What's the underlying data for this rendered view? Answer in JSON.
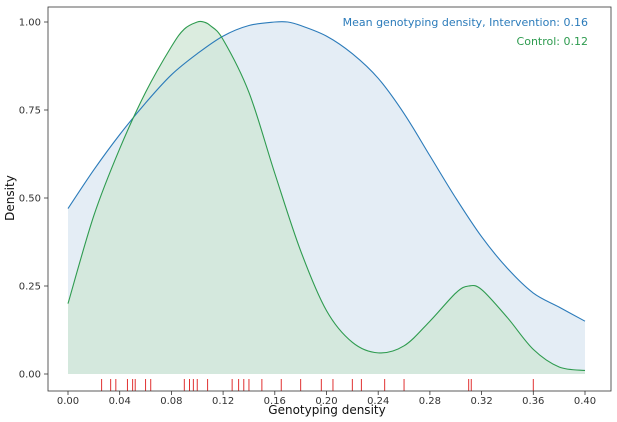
{
  "chart_data": {
    "type": "area",
    "title": "",
    "xlabel": "Genotyping density",
    "ylabel": "Density",
    "xlim": [
      0.0,
      0.4
    ],
    "ylim": [
      0.0,
      1.0
    ],
    "grid": false,
    "x_ticks": [
      "0.00",
      "0.04",
      "0.08",
      "0.12",
      "0.16",
      "0.20",
      "0.24",
      "0.28",
      "0.32",
      "0.36",
      "0.40"
    ],
    "y_ticks": [
      "0.00",
      "0.25",
      "0.50",
      "0.75",
      "1.00"
    ],
    "series": [
      {
        "color": "#2b7bba",
        "fill": "#dde8f3",
        "x": [
          0.0,
          0.02,
          0.04,
          0.06,
          0.08,
          0.1,
          0.12,
          0.14,
          0.16,
          0.17,
          0.18,
          0.2,
          0.22,
          0.24,
          0.26,
          0.28,
          0.3,
          0.32,
          0.34,
          0.36,
          0.38,
          0.4
        ],
        "y": [
          0.47,
          0.58,
          0.68,
          0.77,
          0.85,
          0.91,
          0.96,
          0.99,
          1.0,
          1.0,
          0.99,
          0.96,
          0.91,
          0.84,
          0.74,
          0.62,
          0.5,
          0.39,
          0.3,
          0.23,
          0.19,
          0.15
        ]
      },
      {
        "color": "#2e9b4f",
        "fill": "#cfe6d4",
        "x": [
          0.0,
          0.02,
          0.04,
          0.06,
          0.08,
          0.09,
          0.1,
          0.105,
          0.11,
          0.12,
          0.14,
          0.16,
          0.18,
          0.2,
          0.22,
          0.24,
          0.26,
          0.28,
          0.3,
          0.31,
          0.32,
          0.34,
          0.36,
          0.38,
          0.4
        ],
        "y": [
          0.2,
          0.45,
          0.64,
          0.8,
          0.93,
          0.98,
          1.0,
          1.0,
          0.99,
          0.95,
          0.8,
          0.57,
          0.35,
          0.18,
          0.09,
          0.06,
          0.08,
          0.15,
          0.23,
          0.25,
          0.24,
          0.16,
          0.07,
          0.02,
          0.01
        ]
      }
    ],
    "rug": {
      "color": "#e03131",
      "x": [
        0.026,
        0.033,
        0.037,
        0.046,
        0.05,
        0.052,
        0.06,
        0.064,
        0.09,
        0.094,
        0.097,
        0.1,
        0.108,
        0.127,
        0.132,
        0.136,
        0.14,
        0.15,
        0.165,
        0.18,
        0.196,
        0.205,
        0.22,
        0.227,
        0.245,
        0.26,
        0.31,
        0.312,
        0.36
      ]
    },
    "annotations": [
      {
        "text": "Mean genotyping density, Intervention: 0.16",
        "color": "#2b7bba"
      },
      {
        "text": "Control: 0.12",
        "color": "#2e9b4f"
      }
    ]
  }
}
